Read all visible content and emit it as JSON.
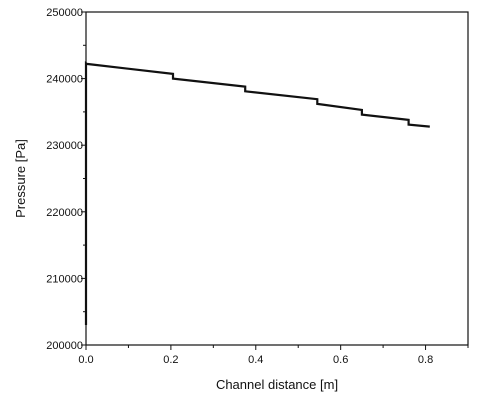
{
  "chart_data": {
    "type": "line",
    "title": "",
    "xlabel": "Channel distance [m]",
    "ylabel": "Pressure [Pa]",
    "xlim": [
      0.0,
      0.9
    ],
    "ylim": [
      200000,
      250000
    ],
    "x_ticks": [
      0.0,
      0.2,
      0.4,
      0.6,
      0.8
    ],
    "x_tick_labels": [
      "0.0",
      "0.2",
      "0.4",
      "0.6",
      "0.8"
    ],
    "y_ticks": [
      200000,
      210000,
      220000,
      230000,
      240000,
      250000
    ],
    "y_tick_labels": [
      "200000",
      "210000",
      "220000",
      "230000",
      "240000",
      "250000"
    ],
    "grid": false,
    "legend": "none",
    "series": [
      {
        "x": [
          0.0,
          0.0,
          0.002,
          0.205,
          0.205,
          0.375,
          0.375,
          0.545,
          0.545,
          0.65,
          0.65,
          0.76,
          0.76,
          0.81
        ],
        "y": [
          203000,
          242300,
          242200,
          240700,
          240000,
          238800,
          238100,
          236900,
          236200,
          235300,
          234600,
          233800,
          233100,
          232800
        ]
      }
    ]
  }
}
